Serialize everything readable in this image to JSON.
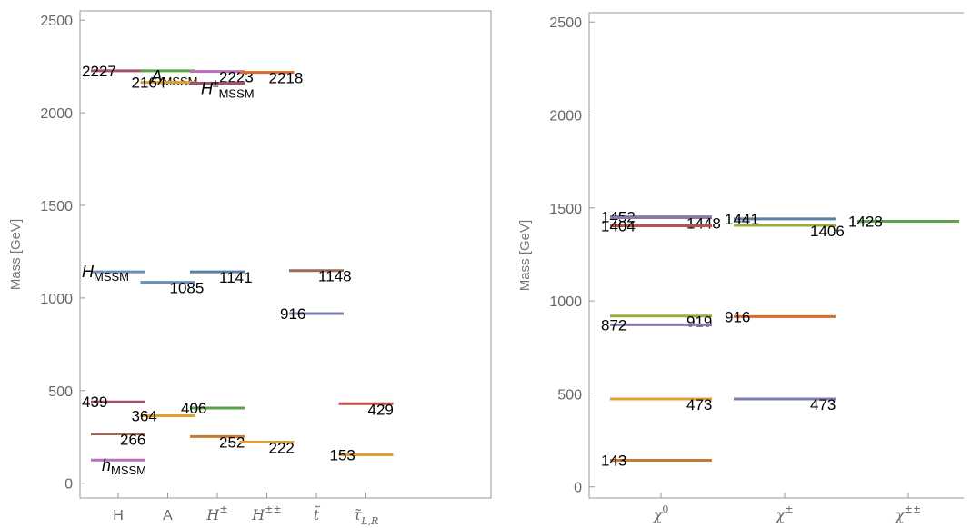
{
  "colors": {
    "axis": "#9a9a9a",
    "red": "#c0504d",
    "mauve": "#a0506e",
    "green": "#5aa34b",
    "gold": "#e0a030",
    "olive": "#9aad3a",
    "orange": "#dc6a2a",
    "blue": "#5a7fa0",
    "purple": "#8c78a8",
    "pink": "#b870b8",
    "brown": "#9a6a5a",
    "bronze": "#c87a30",
    "indigo": "#7a7fb0",
    "teal": "#6a90b8"
  },
  "chart_data": [
    {
      "type": "level-diagram",
      "ylabel": "Mass [GeV]",
      "ylim": [
        -80,
        2550
      ],
      "yticks": [
        0,
        500,
        1000,
        1500,
        2000,
        2500
      ],
      "grid": false,
      "categories": [
        {
          "label": "H",
          "upright": true
        },
        {
          "label": "A",
          "upright": true
        },
        {
          "label": "H",
          "sup": "±"
        },
        {
          "label": "H",
          "sup": "±±"
        },
        {
          "label": "t̃"
        },
        {
          "label": "τ̃",
          "sub": "L,R"
        }
      ],
      "levels": [
        {
          "cat": 0,
          "value": 2227,
          "label": "2227",
          "color": "mauve",
          "label_side": "left"
        },
        {
          "cat": 0,
          "value": 1141,
          "name": "H",
          "name_sub": "MSSM",
          "color": "teal",
          "label_side": "left"
        },
        {
          "cat": 0,
          "value": 439,
          "label": "439",
          "color": "mauve",
          "label_side": "left"
        },
        {
          "cat": 0,
          "value": 266,
          "label": "266",
          "color": "brown",
          "label_side": "right"
        },
        {
          "cat": 0,
          "value": 125,
          "name": "h",
          "name_sub": "MSSM",
          "color": "pink",
          "label_side": "right"
        },
        {
          "cat": 1,
          "value": 2227,
          "name": "A",
          "name_sub": "MSSM",
          "color": "green",
          "label_side": "right"
        },
        {
          "cat": 1,
          "value": 2164,
          "label": "2164",
          "color": "gold",
          "label_side": "left"
        },
        {
          "cat": 1,
          "value": 1085,
          "label": "1085",
          "color": "teal",
          "label_side": "right"
        },
        {
          "cat": 1,
          "value": 364,
          "label": "364",
          "color": "gold",
          "label_side": "left"
        },
        {
          "cat": 2,
          "value": 2223,
          "label": "2223",
          "color": "pink",
          "label_side": "right"
        },
        {
          "cat": 2,
          "value": 2160,
          "name": "H",
          "name_sup": "±",
          "name_sub": "MSSM",
          "color": "mauve",
          "label_side": "right"
        },
        {
          "cat": 2,
          "value": 1141,
          "label": "1141",
          "color": "blue",
          "label_side": "right"
        },
        {
          "cat": 2,
          "value": 406,
          "label": "406",
          "color": "green",
          "label_side": "left"
        },
        {
          "cat": 2,
          "value": 252,
          "label": "252",
          "color": "bronze",
          "label_side": "right"
        },
        {
          "cat": 3,
          "value": 2218,
          "label": "2218",
          "color": "orange",
          "label_side": "right"
        },
        {
          "cat": 3,
          "value": 222,
          "label": "222",
          "color": "gold",
          "label_side": "right"
        },
        {
          "cat": 4,
          "value": 1148,
          "label": "1148",
          "color": "brown",
          "label_side": "right"
        },
        {
          "cat": 4,
          "value": 916,
          "label": "916",
          "color": "indigo",
          "label_side": "left"
        },
        {
          "cat": 5,
          "value": 429,
          "label": "429",
          "color": "red",
          "label_side": "right"
        },
        {
          "cat": 5,
          "value": 153,
          "label": "153",
          "color": "gold",
          "label_side": "left"
        }
      ]
    },
    {
      "type": "level-diagram",
      "ylabel": "Mass [GeV]",
      "ylim": [
        -60,
        2550
      ],
      "yticks": [
        0,
        500,
        1000,
        1500,
        2000,
        2500
      ],
      "grid": false,
      "categories": [
        {
          "label": "χ",
          "sup": "0"
        },
        {
          "label": "χ",
          "sup": "±"
        },
        {
          "label": "χ",
          "sup": "±±"
        }
      ],
      "levels": [
        {
          "cat": 0,
          "value": 1452,
          "label": "1452",
          "color": "indigo",
          "label_side": "left"
        },
        {
          "cat": 0,
          "value": 1448,
          "label": "1448",
          "color": "purple",
          "label_side": "right"
        },
        {
          "cat": 0,
          "value": 1404,
          "label": "1404",
          "color": "red",
          "label_side": "left"
        },
        {
          "cat": 0,
          "value": 919,
          "label": "919",
          "color": "olive",
          "label_side": "right"
        },
        {
          "cat": 0,
          "value": 872,
          "label": "872",
          "color": "purple",
          "label_side": "left"
        },
        {
          "cat": 0,
          "value": 473,
          "label": "473",
          "color": "gold",
          "label_side": "right"
        },
        {
          "cat": 0,
          "value": 143,
          "label": "143",
          "color": "bronze",
          "label_side": "left"
        },
        {
          "cat": 1,
          "value": 1441,
          "label": "1441",
          "color": "blue",
          "label_side": "left"
        },
        {
          "cat": 1,
          "value": 1406,
          "label": "1406",
          "color": "olive",
          "label_side": "right"
        },
        {
          "cat": 1,
          "value": 916,
          "label": "916",
          "color": "orange",
          "label_side": "left"
        },
        {
          "cat": 1,
          "value": 473,
          "label": "473",
          "color": "indigo",
          "label_side": "right"
        },
        {
          "cat": 2,
          "value": 1428,
          "label": "1428",
          "color": "green",
          "label_side": "left"
        }
      ]
    }
  ]
}
